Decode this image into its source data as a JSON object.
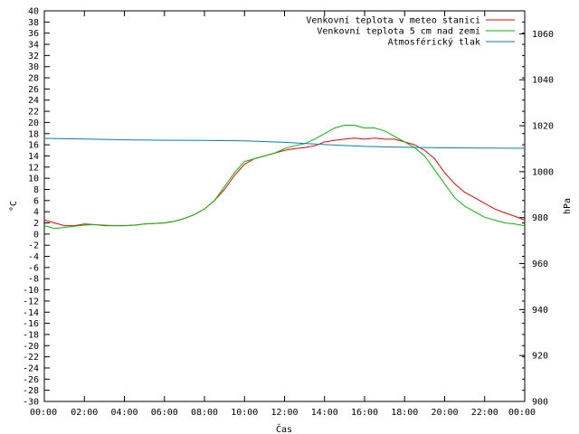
{
  "chart_data": {
    "type": "line",
    "xlabel": "Čas",
    "ylabel": "°C",
    "y2label": "hPa",
    "x_ticks": [
      "00:00",
      "02:00",
      "04:00",
      "06:00",
      "08:00",
      "10:00",
      "12:00",
      "14:00",
      "16:00",
      "18:00",
      "20:00",
      "22:00",
      "00:00"
    ],
    "xlim": [
      0,
      24
    ],
    "ylim": [
      -30,
      40
    ],
    "y2lim": [
      900,
      1070
    ],
    "y_ticks": [
      40,
      38,
      36,
      34,
      32,
      30,
      28,
      26,
      24,
      22,
      20,
      18,
      16,
      14,
      12,
      10,
      8,
      6,
      4,
      2,
      0,
      -2,
      -4,
      -6,
      -8,
      -10,
      -12,
      -14,
      -16,
      -18,
      -20,
      -22,
      -24,
      -26,
      -28,
      -30
    ],
    "y2_ticks": [
      1060,
      1040,
      1020,
      1000,
      980,
      960,
      940,
      920,
      900
    ],
    "legend_position": "top-right",
    "grid": false,
    "series": [
      {
        "name": "Venkovní teplota v meteo stanici",
        "color": "#ff0000",
        "axis": "left",
        "x": [
          0,
          0.5,
          1,
          1.5,
          2,
          2.5,
          3,
          3.5,
          4,
          4.5,
          5,
          5.5,
          6,
          6.5,
          7,
          7.5,
          8,
          8.5,
          9,
          9.5,
          10,
          10.5,
          11,
          11.5,
          12,
          12.5,
          13,
          13.5,
          14,
          14.5,
          15,
          15.5,
          16,
          16.5,
          17,
          17.5,
          18,
          18.5,
          19,
          19.5,
          20,
          20.5,
          21,
          21.5,
          22,
          22.5,
          23,
          23.5,
          24
        ],
        "y": [
          2.5,
          2.0,
          1.5,
          1.5,
          1.8,
          1.7,
          1.5,
          1.5,
          1.5,
          1.6,
          1.8,
          1.9,
          2.0,
          2.3,
          2.8,
          3.5,
          4.5,
          6.0,
          8.0,
          10.5,
          12.5,
          13.5,
          14.0,
          14.5,
          15.0,
          15.3,
          15.5,
          15.8,
          16.5,
          16.8,
          17.0,
          17.2,
          17.0,
          17.2,
          17.0,
          17.0,
          16.5,
          16.0,
          15.0,
          13.5,
          11.0,
          9.0,
          7.5,
          6.5,
          5.5,
          4.5,
          3.8,
          3.2,
          2.5
        ]
      },
      {
        "name": "Venkovní teplota 5 cm nad zemí",
        "color": "#00c000",
        "axis": "left",
        "x": [
          0,
          0.5,
          1,
          1.5,
          2,
          2.5,
          3,
          3.5,
          4,
          4.5,
          5,
          5.5,
          6,
          6.5,
          7,
          7.5,
          8,
          8.5,
          9,
          9.5,
          10,
          10.5,
          11,
          11.5,
          12,
          12.5,
          13,
          13.5,
          14,
          14.5,
          15,
          15.5,
          16,
          16.5,
          17,
          17.5,
          18,
          18.5,
          19,
          19.5,
          20,
          20.5,
          21,
          21.5,
          22,
          22.5,
          23,
          23.5,
          24
        ],
        "y": [
          1.5,
          1.0,
          1.2,
          1.4,
          1.6,
          1.7,
          1.6,
          1.5,
          1.5,
          1.6,
          1.8,
          1.9,
          2.0,
          2.3,
          2.8,
          3.5,
          4.5,
          6.0,
          8.5,
          11.0,
          13.0,
          13.5,
          14.0,
          14.5,
          15.3,
          15.8,
          16.2,
          17.0,
          18.0,
          19.0,
          19.5,
          19.5,
          19.0,
          19.0,
          18.5,
          17.5,
          16.5,
          15.5,
          14.0,
          11.5,
          9.0,
          6.5,
          5.0,
          4.0,
          3.0,
          2.5,
          2.0,
          1.8,
          1.5
        ]
      },
      {
        "name": "Atmosférický tlak",
        "color": "#0080d0",
        "axis": "right",
        "x": [
          0,
          2,
          4,
          6,
          8,
          10,
          12,
          14,
          16,
          18,
          20,
          22,
          24
        ],
        "y": [
          1014.5,
          1014.2,
          1013.9,
          1013.7,
          1013.6,
          1013.4,
          1012.8,
          1011.8,
          1011.0,
          1010.6,
          1010.4,
          1010.3,
          1010.2
        ]
      }
    ]
  }
}
